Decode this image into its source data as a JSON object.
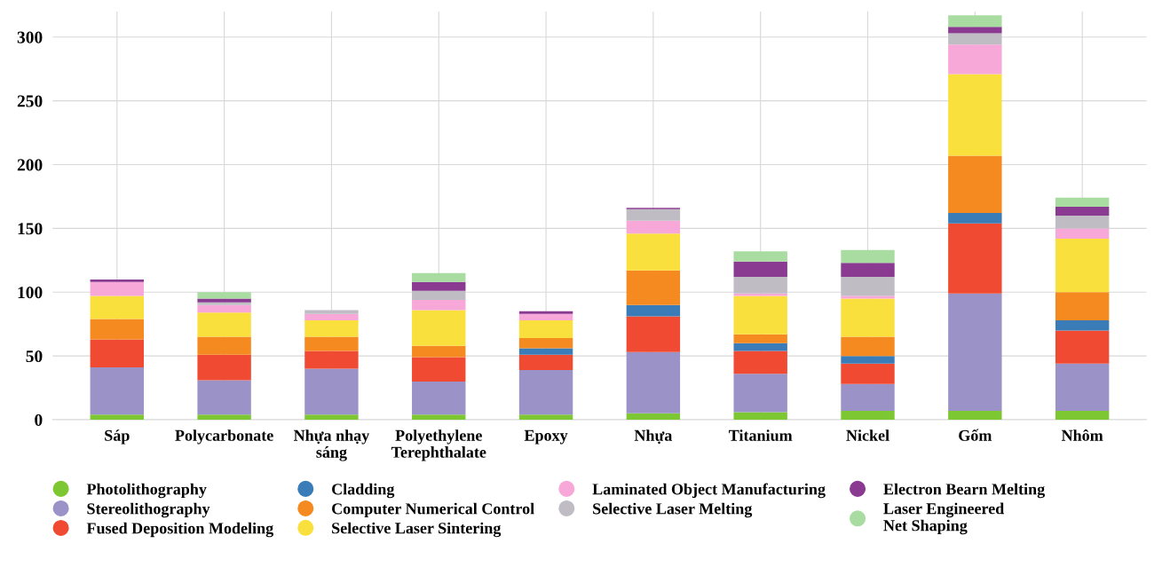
{
  "chart_data": {
    "type": "bar",
    "stacked": true,
    "categories": [
      "Sáp",
      "Polycarbonate",
      "Nhựa nhạy\nsáng",
      "Polyethylene\nTerephthalate",
      "Epoxy",
      "Nhựa",
      "Titanium",
      "Nickel",
      "Gốm",
      "Nhôm"
    ],
    "series": [
      {
        "name": "Photolithography",
        "color": "#7dc832",
        "values": [
          4,
          4,
          4,
          4,
          4,
          5,
          6,
          7,
          7,
          7
        ]
      },
      {
        "name": "Stereolithography",
        "color": "#9b93c8",
        "values": [
          37,
          27,
          36,
          26,
          35,
          48,
          30,
          21,
          92,
          37
        ]
      },
      {
        "name": "Fused Deposition Modeling",
        "color": "#f04a32",
        "values": [
          22,
          20,
          14,
          19,
          12,
          28,
          18,
          16,
          55,
          26
        ]
      },
      {
        "name": "Cladding",
        "color": "#3a7cb8",
        "values": [
          0,
          0,
          0,
          0,
          5,
          9,
          6,
          6,
          8,
          8
        ]
      },
      {
        "name": "Computer Numerical Control",
        "color": "#f58a20",
        "values": [
          16,
          14,
          11,
          9,
          8,
          27,
          7,
          15,
          45,
          22
        ]
      },
      {
        "name": "Selective Laser Sintering",
        "color": "#fae03c",
        "values": [
          18,
          19,
          13,
          28,
          14,
          29,
          30,
          30,
          64,
          42
        ]
      },
      {
        "name": "Laminated Object Manufacturing",
        "color": "#f8a8d8",
        "values": [
          11,
          6,
          5,
          8,
          5,
          10,
          2,
          2,
          23,
          8
        ]
      },
      {
        "name": "Selective Laser Melting",
        "color": "#c0bcc4",
        "values": [
          0,
          2,
          3,
          7,
          0,
          9,
          13,
          15,
          9,
          10
        ]
      },
      {
        "name": "Electron Bearn Melting",
        "color": "#8a3a90",
        "values": [
          2,
          3,
          0,
          7,
          2,
          1,
          12,
          11,
          5,
          7
        ]
      },
      {
        "name": "Laser Engineered\nNet Shaping",
        "color": "#a8dca0",
        "values": [
          0,
          5,
          0,
          7,
          0,
          0,
          8,
          10,
          9,
          7
        ]
      }
    ],
    "ylim": [
      0,
      320
    ],
    "yticks": [
      0,
      50,
      100,
      150,
      200,
      250,
      300
    ],
    "grid": true,
    "legend": "bottom",
    "marker": "circle"
  }
}
